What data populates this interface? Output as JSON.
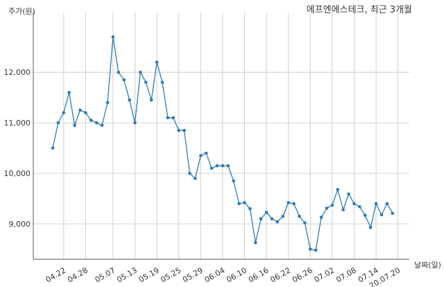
{
  "chart_data": {
    "type": "line",
    "title": "에프엔에스테크, 최근 3개월",
    "xlabel": "날짜(일)",
    "ylabel": "주가(원)",
    "ylim": [
      8300,
      13100
    ],
    "y_ticks": [
      9000,
      10000,
      11000,
      12000
    ],
    "y_tick_labels": [
      "9,000",
      "10,000",
      "11,000",
      "12,000"
    ],
    "x_tick_labels": [
      "04.22",
      "04.28",
      "05.07",
      "05.13",
      "05.19",
      "05.25",
      "05.29",
      "06.04",
      "06.10",
      "06.16",
      "06.22",
      "06.26",
      "07.02",
      "07.08",
      "07.14",
      "20.07.20"
    ],
    "x_tick_indices": [
      2,
      6,
      11,
      15,
      19,
      23,
      27,
      31,
      35,
      39,
      43,
      47,
      51,
      55,
      59,
      63
    ],
    "grid": true,
    "series": [
      {
        "values": [
          10500,
          11000,
          11200,
          11600,
          10950,
          11250,
          11200,
          11050,
          11000,
          10950,
          11400,
          12700,
          12000,
          11850,
          11450,
          11000,
          12000,
          11800,
          11450,
          12200,
          11800,
          11100,
          11100,
          10850,
          10850,
          10000,
          9900,
          10350,
          10400,
          10100,
          10150,
          10150,
          10150,
          9850,
          9400,
          9420,
          9300,
          8630,
          9100,
          9230,
          9100,
          9040,
          9150,
          9420,
          9400,
          9150,
          9020,
          8500,
          8480,
          9130,
          9310,
          9370,
          9680,
          9280,
          9590,
          9400,
          9340,
          9170,
          8930,
          9400,
          9180,
          9400,
          9210
        ],
        "color": "#2b7bb9"
      }
    ]
  }
}
